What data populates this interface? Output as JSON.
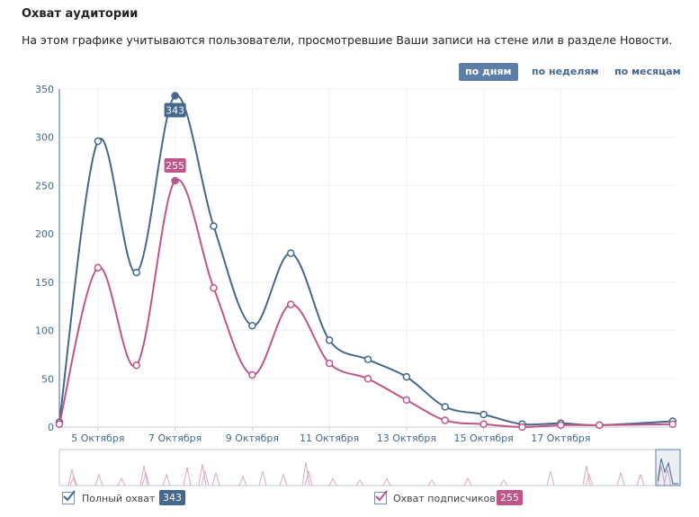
{
  "header": {
    "title": "Охват аудитории",
    "subtitle": "На этом графике учитываются пользователи, просмотревшие Ваши записи на стене или в разделе Новости."
  },
  "tabs": [
    {
      "label": "по дням",
      "active": true
    },
    {
      "label": "по неделям",
      "active": false
    },
    {
      "label": "по месяцам",
      "active": false
    }
  ],
  "chart_data": {
    "type": "line",
    "x": [
      3.0,
      4.0,
      5.0,
      6.0,
      7.0,
      8.0,
      9.0,
      10.0,
      11.0,
      12.0,
      13.0,
      14.0,
      15.0,
      16.0,
      17.0,
      18.0,
      19.0
    ],
    "x_ticks": [
      "5 Октября",
      "7 Октября",
      "9 Октября",
      "11 Октября",
      "13 Октября",
      "15 Октября",
      "17 Октября"
    ],
    "x_tick_values": [
      5,
      7,
      9,
      11,
      13,
      15,
      17
    ],
    "y_ticks": [
      0,
      50,
      100,
      150,
      200,
      250,
      300,
      350
    ],
    "ylim": [
      0,
      350
    ],
    "xlim": [
      4.0,
      20.0
    ],
    "series": [
      {
        "name": "Полный охват",
        "color": "#45688e",
        "values": [
          5,
          296,
          160,
          343,
          208,
          105,
          180,
          90,
          70,
          52,
          21,
          13,
          3,
          4,
          2,
          6
        ],
        "x": [
          4.0,
          5.0,
          6.0,
          7.0,
          8.0,
          9.0,
          10.0,
          11.0,
          12.0,
          13.0,
          14.0,
          15.0,
          16.0,
          17.0,
          18.0,
          19.9
        ]
      },
      {
        "name": "Охват подписчиков",
        "color": "#c0558a",
        "values": [
          3,
          165,
          64,
          255,
          144,
          54,
          127,
          66,
          50,
          28,
          7,
          3,
          0,
          2,
          2,
          3
        ],
        "x": [
          4.0,
          5.0,
          6.0,
          7.0,
          8.0,
          9.0,
          10.0,
          11.0,
          12.0,
          13.0,
          14.0,
          15.0,
          16.0,
          17.0,
          18.0,
          19.9
        ]
      }
    ],
    "highlight": {
      "x": 7.0,
      "labels": [
        "343",
        "255"
      ]
    },
    "grid": true
  },
  "legend": [
    {
      "label": "Полный охват",
      "value": "343",
      "color": "#45688e",
      "checked": true
    },
    {
      "label": "Охват подписчиков",
      "value": "255",
      "color": "#c0558a",
      "checked": true
    }
  ]
}
